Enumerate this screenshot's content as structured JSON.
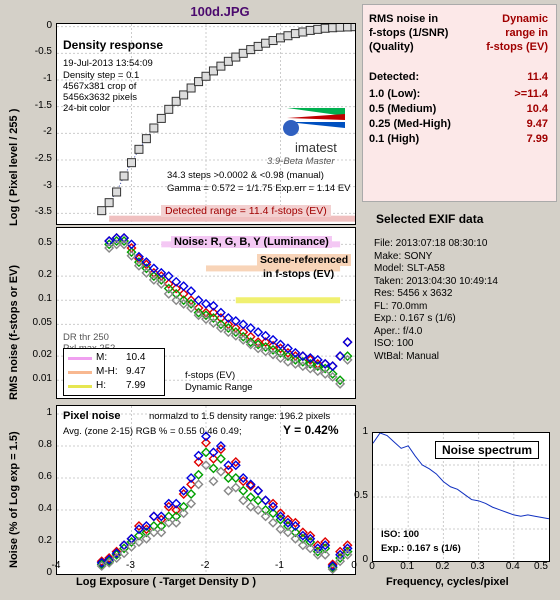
{
  "window_title": "100d.JPG",
  "density": {
    "title": "Density response",
    "ylabel": "Log ( Pixel level / 255 )",
    "date": "19-Jul-2013 13:54:09",
    "density_step": "Density step = 0.1",
    "crop": "4567x381 crop of",
    "size": "5456x3632 pixels",
    "color": "24-bit color",
    "brand": "imatest",
    "version": "3.9-Beta  Master",
    "steps": "34.3 steps >0.0002 & <0.98 (manual)",
    "gamma": "Gamma = 0.572 = 1/1.75  Exp.err = 1.14 EV",
    "detected": "Detected range = 11.4 f-stops (EV)",
    "yticks": [
      "0",
      "-0.5",
      "-1",
      "-1.5",
      "-2",
      "-2.5",
      "-3",
      "-3.5"
    ],
    "ylim": [
      -3.7,
      0.05
    ],
    "xlim": [
      -4,
      0
    ]
  },
  "rms": {
    "ylabel": "RMS noise (f-stops or EV)",
    "legend_title": "Noise: R, G, B, Y (Luminance)",
    "note1": "Scene-referenced",
    "note2": "in f-stops (EV)",
    "dr_thr": "DR thr 250",
    "pxl_max": "Pxl max 252",
    "legend": [
      {
        "label": "M:",
        "value": "10.4",
        "color": "#f0a0f0"
      },
      {
        "label": "M-H:",
        "value": "9.47",
        "color": "#f8b890"
      },
      {
        "label": "H:",
        "value": "7.99",
        "color": "#e6e650"
      }
    ],
    "fstops": "f-stops (EV)",
    "dynamic": "Dynamic Range",
    "yticks": [
      "0.5",
      "0.2",
      "0.1",
      "0.05",
      "0.02",
      "0.01"
    ]
  },
  "pixel": {
    "ylabel": "Noise (% of Log exp = 1.5)",
    "xlabel": "Log Exposure ( -Target Density D )",
    "title": "Pixel noise",
    "norm": "normalzd to 1.5 density range: 196.2 pixels",
    "avg": "Avg. (zone 2-15) RGB % = 0.55  0.46  0.49;",
    "y_result": "Y = 0.42%",
    "yticks": [
      "1",
      "0.8",
      "0.6",
      "0.4",
      "0.2",
      "0"
    ],
    "xticks": [
      "-4",
      "-3",
      "-2",
      "-1",
      "0"
    ]
  },
  "dr_table": {
    "h1a": "RMS noise in",
    "h1b": "f-stops (1/SNR)",
    "h1c": "(Quality)",
    "h2a": "Dynamic",
    "h2b": "range in",
    "h2c": "f-stops (EV)",
    "rows": [
      {
        "label": "Detected:",
        "value": "11.4"
      },
      {
        "label": "1.0  (Low):",
        "value": ">=11.4"
      },
      {
        "label": "0.5  (Medium)",
        "value": "10.4"
      },
      {
        "label": "0.25 (Med-High)",
        "value": "9.47"
      },
      {
        "label": "0.1  (High)",
        "value": "7.99"
      }
    ]
  },
  "exif": {
    "title": "Selected EXIF data",
    "rows": [
      "File:  2013:07:18 08:30:10",
      "Make:  SONY",
      "Model: SLT-A58",
      "Taken:  2013:04:30 10:49:14",
      "Res:    5456 x 3632",
      "FL:  70.0mm",
      "Exp.:  0.167 s  (1/6)",
      "Aper.: f/4.0",
      "ISO:   100",
      "WtBal: Manual"
    ]
  },
  "spectrum": {
    "title": "Noise spectrum",
    "xlabel": "Frequency, cycles/pixel",
    "yticks": [
      "1",
      "0.5",
      "0"
    ],
    "xticks": [
      "0",
      "0.1",
      "0.2",
      "0.3",
      "0.4",
      "0.5"
    ],
    "iso": "ISO:   100",
    "exp": "Exp.:  0.167 s   (1/6)"
  },
  "chart_data": [
    {
      "type": "scatter",
      "title": "Density response",
      "ylabel": "Log ( Pixel level / 255 )",
      "x": [
        -3.4,
        -3.3,
        -3.2,
        -3.1,
        -3.0,
        -2.9,
        -2.8,
        -2.7,
        -2.6,
        -2.5,
        -2.4,
        -2.3,
        -2.2,
        -2.1,
        -2.0,
        -1.9,
        -1.8,
        -1.7,
        -1.6,
        -1.5,
        -1.4,
        -1.3,
        -1.2,
        -1.1,
        -1.0,
        -0.9,
        -0.8,
        -0.7,
        -0.6,
        -0.5,
        -0.4,
        -0.3,
        -0.2,
        -0.1,
        0.0
      ],
      "y": [
        -3.45,
        -3.3,
        -3.1,
        -2.8,
        -2.55,
        -2.3,
        -2.1,
        -1.9,
        -1.72,
        -1.55,
        -1.4,
        -1.28,
        -1.15,
        -1.03,
        -0.93,
        -0.83,
        -0.74,
        -0.65,
        -0.57,
        -0.5,
        -0.43,
        -0.37,
        -0.31,
        -0.26,
        -0.21,
        -0.17,
        -0.13,
        -0.1,
        -0.07,
        -0.05,
        -0.03,
        -0.02,
        -0.01,
        -0.005,
        0.0
      ],
      "xlim": [
        -4,
        0
      ],
      "ylim": [
        -3.7,
        0.05
      ]
    },
    {
      "type": "scatter",
      "ylabel": "RMS noise (f-stops or EV)",
      "series": [
        {
          "name": "R",
          "color": "#e00000",
          "x": [
            -3.3,
            -3.2,
            -3.1,
            -3.0,
            -2.9,
            -2.8,
            -2.7,
            -2.6,
            -2.5,
            -2.4,
            -2.3,
            -2.2,
            -2.1,
            -2.0,
            -1.9,
            -1.8,
            -1.7,
            -1.6,
            -1.5,
            -1.4,
            -1.3,
            -1.2,
            -1.1,
            -1.0,
            -0.9,
            -0.8,
            -0.7,
            -0.6,
            -0.5,
            -0.4,
            -0.3,
            -0.2,
            -0.1
          ],
          "y": [
            0.55,
            0.6,
            0.6,
            0.45,
            0.33,
            0.28,
            0.22,
            0.2,
            0.16,
            0.14,
            0.12,
            0.1,
            0.08,
            0.07,
            0.07,
            0.06,
            0.05,
            0.045,
            0.04,
            0.035,
            0.03,
            0.03,
            0.027,
            0.025,
            0.022,
            0.02,
            0.02,
            0.018,
            0.016,
            0.016,
            0.015,
            0.02,
            0.03
          ]
        },
        {
          "name": "G",
          "color": "#00a000",
          "x": [
            -3.3,
            -3.2,
            -3.1,
            -3.0,
            -2.9,
            -2.8,
            -2.7,
            -2.6,
            -2.5,
            -2.4,
            -2.3,
            -2.2,
            -2.1,
            -2.0,
            -1.9,
            -1.8,
            -1.7,
            -1.6,
            -1.5,
            -1.4,
            -1.3,
            -1.2,
            -1.1,
            -1.0,
            -0.9,
            -0.8,
            -0.7,
            -0.6,
            -0.5,
            -0.4,
            -0.3,
            -0.2,
            -0.1
          ],
          "y": [
            0.5,
            0.55,
            0.55,
            0.4,
            0.3,
            0.25,
            0.2,
            0.18,
            0.14,
            0.12,
            0.1,
            0.09,
            0.07,
            0.065,
            0.06,
            0.05,
            0.045,
            0.04,
            0.035,
            0.03,
            0.028,
            0.026,
            0.024,
            0.022,
            0.02,
            0.018,
            0.017,
            0.016,
            0.015,
            0.014,
            0.012,
            0.01,
            0.02
          ]
        },
        {
          "name": "B",
          "color": "#0000e0",
          "x": [
            -3.3,
            -3.2,
            -3.1,
            -3.0,
            -2.9,
            -2.8,
            -2.7,
            -2.6,
            -2.5,
            -2.4,
            -2.3,
            -2.2,
            -2.1,
            -2.0,
            -1.9,
            -1.8,
            -1.7,
            -1.6,
            -1.5,
            -1.4,
            -1.3,
            -1.2,
            -1.1,
            -1.0,
            -0.9,
            -0.8,
            -0.7,
            -0.6,
            -0.5,
            -0.4,
            -0.3,
            -0.2,
            -0.1
          ],
          "y": [
            0.55,
            0.6,
            0.6,
            0.5,
            0.35,
            0.3,
            0.25,
            0.22,
            0.2,
            0.17,
            0.15,
            0.13,
            0.1,
            0.09,
            0.085,
            0.07,
            0.06,
            0.055,
            0.05,
            0.045,
            0.04,
            0.036,
            0.032,
            0.028,
            0.025,
            0.022,
            0.02,
            0.019,
            0.018,
            0.016,
            0.015,
            0.02,
            0.03
          ]
        },
        {
          "name": "Y",
          "color": "#888888",
          "x": [
            -3.3,
            -3.2,
            -3.1,
            -3.0,
            -2.9,
            -2.8,
            -2.7,
            -2.6,
            -2.5,
            -2.4,
            -2.3,
            -2.2,
            -2.1,
            -2.0,
            -1.9,
            -1.8,
            -1.7,
            -1.6,
            -1.5,
            -1.4,
            -1.3,
            -1.2,
            -1.1,
            -1.0,
            -0.9,
            -0.8,
            -0.7,
            -0.6,
            -0.5,
            -0.4,
            -0.3,
            -0.2,
            -0.1
          ],
          "y": [
            0.45,
            0.5,
            0.5,
            0.36,
            0.27,
            0.22,
            0.18,
            0.16,
            0.12,
            0.1,
            0.09,
            0.08,
            0.065,
            0.058,
            0.052,
            0.045,
            0.04,
            0.036,
            0.032,
            0.028,
            0.025,
            0.023,
            0.021,
            0.019,
            0.017,
            0.016,
            0.015,
            0.014,
            0.013,
            0.012,
            0.011,
            0.009,
            0.018
          ]
        }
      ],
      "yscale": "log",
      "ylim": [
        0.006,
        0.8
      ],
      "xlim": [
        -4,
        0
      ]
    },
    {
      "type": "scatter",
      "title": "Pixel noise",
      "xlabel": "Log Exposure ( -Target Density D )",
      "ylabel": "Noise (% of Log exp = 1.5)",
      "series": [
        {
          "name": "R",
          "color": "#e00000",
          "x": [
            -3.4,
            -3.3,
            -3.2,
            -3.1,
            -3.0,
            -2.9,
            -2.8,
            -2.7,
            -2.6,
            -2.5,
            -2.4,
            -2.3,
            -2.2,
            -2.1,
            -2.0,
            -1.9,
            -1.8,
            -1.7,
            -1.6,
            -1.5,
            -1.4,
            -1.3,
            -1.2,
            -1.1,
            -1.0,
            -0.9,
            -0.8,
            -0.7,
            -0.6,
            -0.5,
            -0.4,
            -0.3,
            -0.2,
            -0.1
          ],
          "y": [
            0.08,
            0.1,
            0.14,
            0.18,
            0.22,
            0.3,
            0.28,
            0.36,
            0.34,
            0.42,
            0.4,
            0.5,
            0.56,
            0.7,
            0.82,
            0.72,
            0.78,
            0.65,
            0.7,
            0.58,
            0.55,
            0.52,
            0.46,
            0.44,
            0.38,
            0.34,
            0.32,
            0.26,
            0.24,
            0.18,
            0.2,
            0.06,
            0.14,
            0.18
          ]
        },
        {
          "name": "G",
          "color": "#00a000",
          "x": [
            -3.4,
            -3.3,
            -3.2,
            -3.1,
            -3.0,
            -2.9,
            -2.8,
            -2.7,
            -2.6,
            -2.5,
            -2.4,
            -2.3,
            -2.2,
            -2.1,
            -2.0,
            -1.9,
            -1.8,
            -1.7,
            -1.6,
            -1.5,
            -1.4,
            -1.3,
            -1.2,
            -1.1,
            -1.0,
            -0.9,
            -0.8,
            -0.7,
            -0.6,
            -0.5,
            -0.4,
            -0.3,
            -0.2,
            -0.1
          ],
          "y": [
            0.06,
            0.08,
            0.12,
            0.16,
            0.2,
            0.24,
            0.26,
            0.3,
            0.3,
            0.36,
            0.36,
            0.42,
            0.5,
            0.62,
            0.76,
            0.66,
            0.72,
            0.6,
            0.6,
            0.52,
            0.48,
            0.46,
            0.4,
            0.38,
            0.34,
            0.3,
            0.26,
            0.22,
            0.2,
            0.14,
            0.16,
            0.04,
            0.1,
            0.14
          ]
        },
        {
          "name": "B",
          "color": "#0000e0",
          "x": [
            -3.4,
            -3.3,
            -3.2,
            -3.1,
            -3.0,
            -2.9,
            -2.8,
            -2.7,
            -2.6,
            -2.5,
            -2.4,
            -2.3,
            -2.2,
            -2.1,
            -2.0,
            -1.9,
            -1.8,
            -1.7,
            -1.6,
            -1.5,
            -1.4,
            -1.3,
            -1.2,
            -1.1,
            -1.0,
            -0.9,
            -0.8,
            -0.7,
            -0.6,
            -0.5,
            -0.4,
            -0.3,
            -0.2,
            -0.1
          ],
          "y": [
            0.07,
            0.09,
            0.13,
            0.18,
            0.22,
            0.28,
            0.3,
            0.36,
            0.36,
            0.44,
            0.44,
            0.52,
            0.6,
            0.74,
            0.86,
            0.76,
            0.8,
            0.68,
            0.68,
            0.6,
            0.56,
            0.52,
            0.46,
            0.42,
            0.36,
            0.32,
            0.3,
            0.24,
            0.22,
            0.16,
            0.18,
            0.05,
            0.12,
            0.16
          ]
        },
        {
          "name": "Y",
          "color": "#888888",
          "x": [
            -3.4,
            -3.3,
            -3.2,
            -3.1,
            -3.0,
            -2.9,
            -2.8,
            -2.7,
            -2.6,
            -2.5,
            -2.4,
            -2.3,
            -2.2,
            -2.1,
            -2.0,
            -1.9,
            -1.8,
            -1.7,
            -1.6,
            -1.5,
            -1.4,
            -1.3,
            -1.2,
            -1.1,
            -1.0,
            -0.9,
            -0.8,
            -0.7,
            -0.6,
            -0.5,
            -0.4,
            -0.3,
            -0.2,
            -0.1
          ],
          "y": [
            0.05,
            0.07,
            0.1,
            0.13,
            0.17,
            0.2,
            0.22,
            0.26,
            0.26,
            0.32,
            0.32,
            0.38,
            0.44,
            0.56,
            0.68,
            0.58,
            0.64,
            0.52,
            0.54,
            0.46,
            0.42,
            0.4,
            0.36,
            0.32,
            0.28,
            0.26,
            0.22,
            0.18,
            0.16,
            0.12,
            0.12,
            0.03,
            0.08,
            0.12
          ]
        }
      ],
      "xlim": [
        -4,
        0
      ],
      "ylim": [
        0,
        1.05
      ]
    },
    {
      "type": "line",
      "title": "Noise spectrum",
      "xlabel": "Frequency, cycles/pixel",
      "x": [
        0,
        0.02,
        0.04,
        0.06,
        0.08,
        0.1,
        0.12,
        0.14,
        0.16,
        0.18,
        0.2,
        0.22,
        0.24,
        0.26,
        0.28,
        0.3,
        0.32,
        0.34,
        0.36,
        0.38,
        0.4,
        0.42,
        0.44,
        0.46,
        0.48,
        0.5
      ],
      "y": [
        0.92,
        1.0,
        0.98,
        0.93,
        0.88,
        0.9,
        0.82,
        0.75,
        0.72,
        0.68,
        0.62,
        0.58,
        0.56,
        0.52,
        0.48,
        0.47,
        0.45,
        0.42,
        0.4,
        0.38,
        0.36,
        0.35,
        0.36,
        0.35,
        0.34,
        0.33
      ],
      "xlim": [
        0,
        0.5
      ],
      "ylim": [
        0,
        1
      ]
    }
  ]
}
